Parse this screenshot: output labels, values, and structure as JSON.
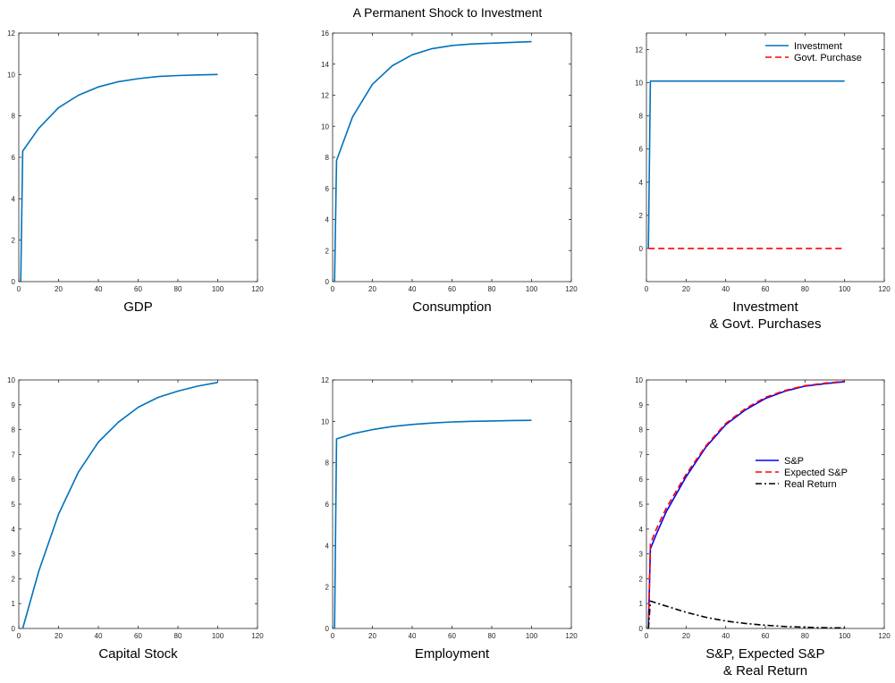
{
  "title": "A Permanent Shock to Investment",
  "colors": {
    "primary": "#0072BD",
    "blue": "#0000FF",
    "red": "#FF0000",
    "black": "#000000"
  },
  "chart_data": [
    {
      "type": "line",
      "xlabel": "GDP",
      "xlim": [
        0,
        120
      ],
      "ylim": [
        0,
        12
      ],
      "xticks": [
        0,
        20,
        40,
        60,
        80,
        100,
        120
      ],
      "yticks": [
        0,
        2,
        4,
        6,
        8,
        10,
        12
      ],
      "series": [
        {
          "style": "solid",
          "color": "#0072BD",
          "x": [
            1,
            2,
            10,
            20,
            30,
            40,
            50,
            60,
            70,
            80,
            90,
            100
          ],
          "y": [
            0,
            6.3,
            7.4,
            8.4,
            9.0,
            9.4,
            9.65,
            9.8,
            9.9,
            9.95,
            9.98,
            10.0
          ]
        }
      ]
    },
    {
      "type": "line",
      "xlabel": "Consumption",
      "xlim": [
        0,
        120
      ],
      "ylim": [
        0,
        16
      ],
      "xticks": [
        0,
        20,
        40,
        60,
        80,
        100,
        120
      ],
      "yticks": [
        0,
        2,
        4,
        6,
        8,
        10,
        12,
        14,
        16
      ],
      "series": [
        {
          "style": "solid",
          "color": "#0072BD",
          "x": [
            1,
            2,
            10,
            20,
            30,
            40,
            50,
            60,
            70,
            80,
            90,
            100
          ],
          "y": [
            0,
            7.8,
            10.6,
            12.7,
            13.9,
            14.6,
            15.0,
            15.2,
            15.3,
            15.35,
            15.4,
            15.45
          ]
        }
      ]
    },
    {
      "type": "line",
      "xlabel": "Investment\n& Govt. Purchases",
      "xlim": [
        0,
        120
      ],
      "ylim": [
        -2,
        13
      ],
      "xticks": [
        0,
        20,
        40,
        60,
        80,
        100,
        120
      ],
      "yticks": [
        0,
        2,
        4,
        6,
        8,
        10,
        12
      ],
      "legend": "top-right",
      "series": [
        {
          "name": "Investment",
          "style": "solid",
          "color": "#0072BD",
          "x": [
            1,
            2,
            100
          ],
          "y": [
            0,
            10.1,
            10.1
          ]
        },
        {
          "name": "Govt. Purchase",
          "style": "dashed",
          "color": "#FF0000",
          "x": [
            1,
            100
          ],
          "y": [
            0,
            0
          ]
        }
      ]
    },
    {
      "type": "line",
      "xlabel": "Capital Stock",
      "xlim": [
        0,
        120
      ],
      "ylim": [
        0,
        10
      ],
      "xticks": [
        0,
        20,
        40,
        60,
        80,
        100,
        120
      ],
      "yticks": [
        0,
        1,
        2,
        3,
        4,
        5,
        6,
        7,
        8,
        9,
        10
      ],
      "series": [
        {
          "style": "solid",
          "color": "#0072BD",
          "x": [
            2,
            10,
            20,
            30,
            40,
            50,
            60,
            70,
            80,
            90,
            100
          ],
          "y": [
            0,
            2.3,
            4.6,
            6.3,
            7.5,
            8.3,
            8.9,
            9.3,
            9.55,
            9.75,
            9.9
          ]
        }
      ]
    },
    {
      "type": "line",
      "xlabel": "Employment",
      "xlim": [
        0,
        120
      ],
      "ylim": [
        0,
        12
      ],
      "xticks": [
        0,
        20,
        40,
        60,
        80,
        100,
        120
      ],
      "yticks": [
        0,
        2,
        4,
        6,
        8,
        10,
        12
      ],
      "series": [
        {
          "style": "solid",
          "color": "#0072BD",
          "x": [
            1,
            2,
            10,
            20,
            30,
            40,
            50,
            60,
            70,
            80,
            90,
            100
          ],
          "y": [
            0,
            9.15,
            9.4,
            9.6,
            9.75,
            9.85,
            9.92,
            9.97,
            10.0,
            10.02,
            10.04,
            10.05
          ]
        }
      ]
    },
    {
      "type": "line",
      "xlabel": "S&P, Expected S&P\n& Real Return",
      "xlim": [
        0,
        120
      ],
      "ylim": [
        0,
        10
      ],
      "xticks": [
        0,
        20,
        40,
        60,
        80,
        100,
        120
      ],
      "yticks": [
        0,
        1,
        2,
        3,
        4,
        5,
        6,
        7,
        8,
        9,
        10
      ],
      "legend": "right",
      "series": [
        {
          "name": "S&P",
          "style": "solid",
          "color": "#0000FF",
          "x": [
            1,
            2,
            5,
            10,
            20,
            30,
            40,
            50,
            60,
            70,
            80,
            90,
            100
          ],
          "y": [
            0,
            3.2,
            3.8,
            4.7,
            6.1,
            7.3,
            8.2,
            8.8,
            9.25,
            9.55,
            9.75,
            9.85,
            9.93
          ]
        },
        {
          "name": "Expected S&P",
          "style": "dashed",
          "color": "#FF0000",
          "x": [
            1,
            2,
            5,
            10,
            20,
            30,
            40,
            50,
            60,
            70,
            80,
            90,
            100
          ],
          "y": [
            0,
            3.4,
            4.0,
            4.85,
            6.2,
            7.35,
            8.25,
            8.85,
            9.3,
            9.58,
            9.77,
            9.87,
            9.95
          ]
        },
        {
          "name": "Real Return",
          "style": "dashdot",
          "color": "#000000",
          "x": [
            1,
            2,
            10,
            20,
            30,
            40,
            50,
            60,
            70,
            80,
            90,
            100
          ],
          "y": [
            0,
            1.1,
            0.9,
            0.65,
            0.45,
            0.3,
            0.2,
            0.13,
            0.08,
            0.05,
            0.03,
            0.02
          ]
        }
      ]
    }
  ]
}
